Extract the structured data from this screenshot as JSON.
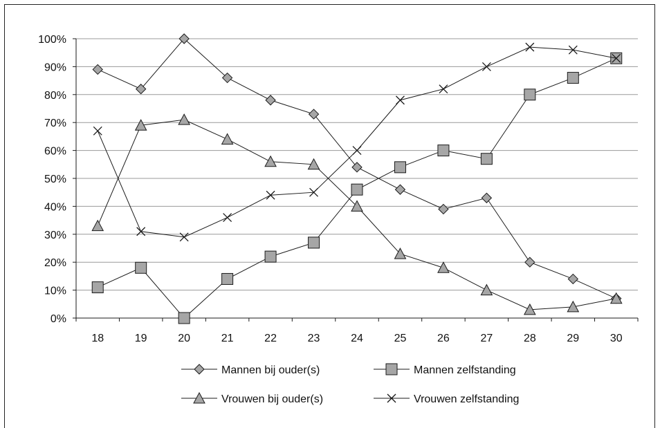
{
  "chart_data": {
    "type": "line",
    "title": "",
    "xlabel": "",
    "ylabel": "",
    "categories": [
      "18",
      "19",
      "20",
      "21",
      "22",
      "23",
      "24",
      "25",
      "26",
      "27",
      "28",
      "29",
      "30"
    ],
    "ylim": [
      0,
      100
    ],
    "yticks": [
      "0%",
      "10%",
      "20%",
      "30%",
      "40%",
      "50%",
      "60%",
      "70%",
      "80%",
      "90%",
      "100%"
    ],
    "grid": true,
    "legend_position": "bottom",
    "series": [
      {
        "name": "Mannen bij ouder(s)",
        "marker": "diamond",
        "values": [
          89,
          82,
          100,
          86,
          78,
          73,
          54,
          46,
          39,
          43,
          20,
          14,
          7
        ]
      },
      {
        "name": "Mannen zelfstanding",
        "marker": "square",
        "values": [
          11,
          18,
          0,
          14,
          22,
          27,
          46,
          54,
          60,
          57,
          80,
          86,
          93
        ]
      },
      {
        "name": "Vrouwen bij ouder(s)",
        "marker": "triangle",
        "values": [
          33,
          69,
          71,
          64,
          56,
          55,
          40,
          23,
          18,
          10,
          3,
          4,
          7
        ]
      },
      {
        "name": "Vrouwen zelfstanding",
        "marker": "cross",
        "values": [
          67,
          31,
          29,
          36,
          44,
          45,
          60,
          78,
          82,
          90,
          97,
          96,
          93
        ]
      }
    ]
  },
  "colors": {
    "marker_fill": "#a6a6a6",
    "line": "#1a1a1a",
    "grid": "#999999"
  }
}
